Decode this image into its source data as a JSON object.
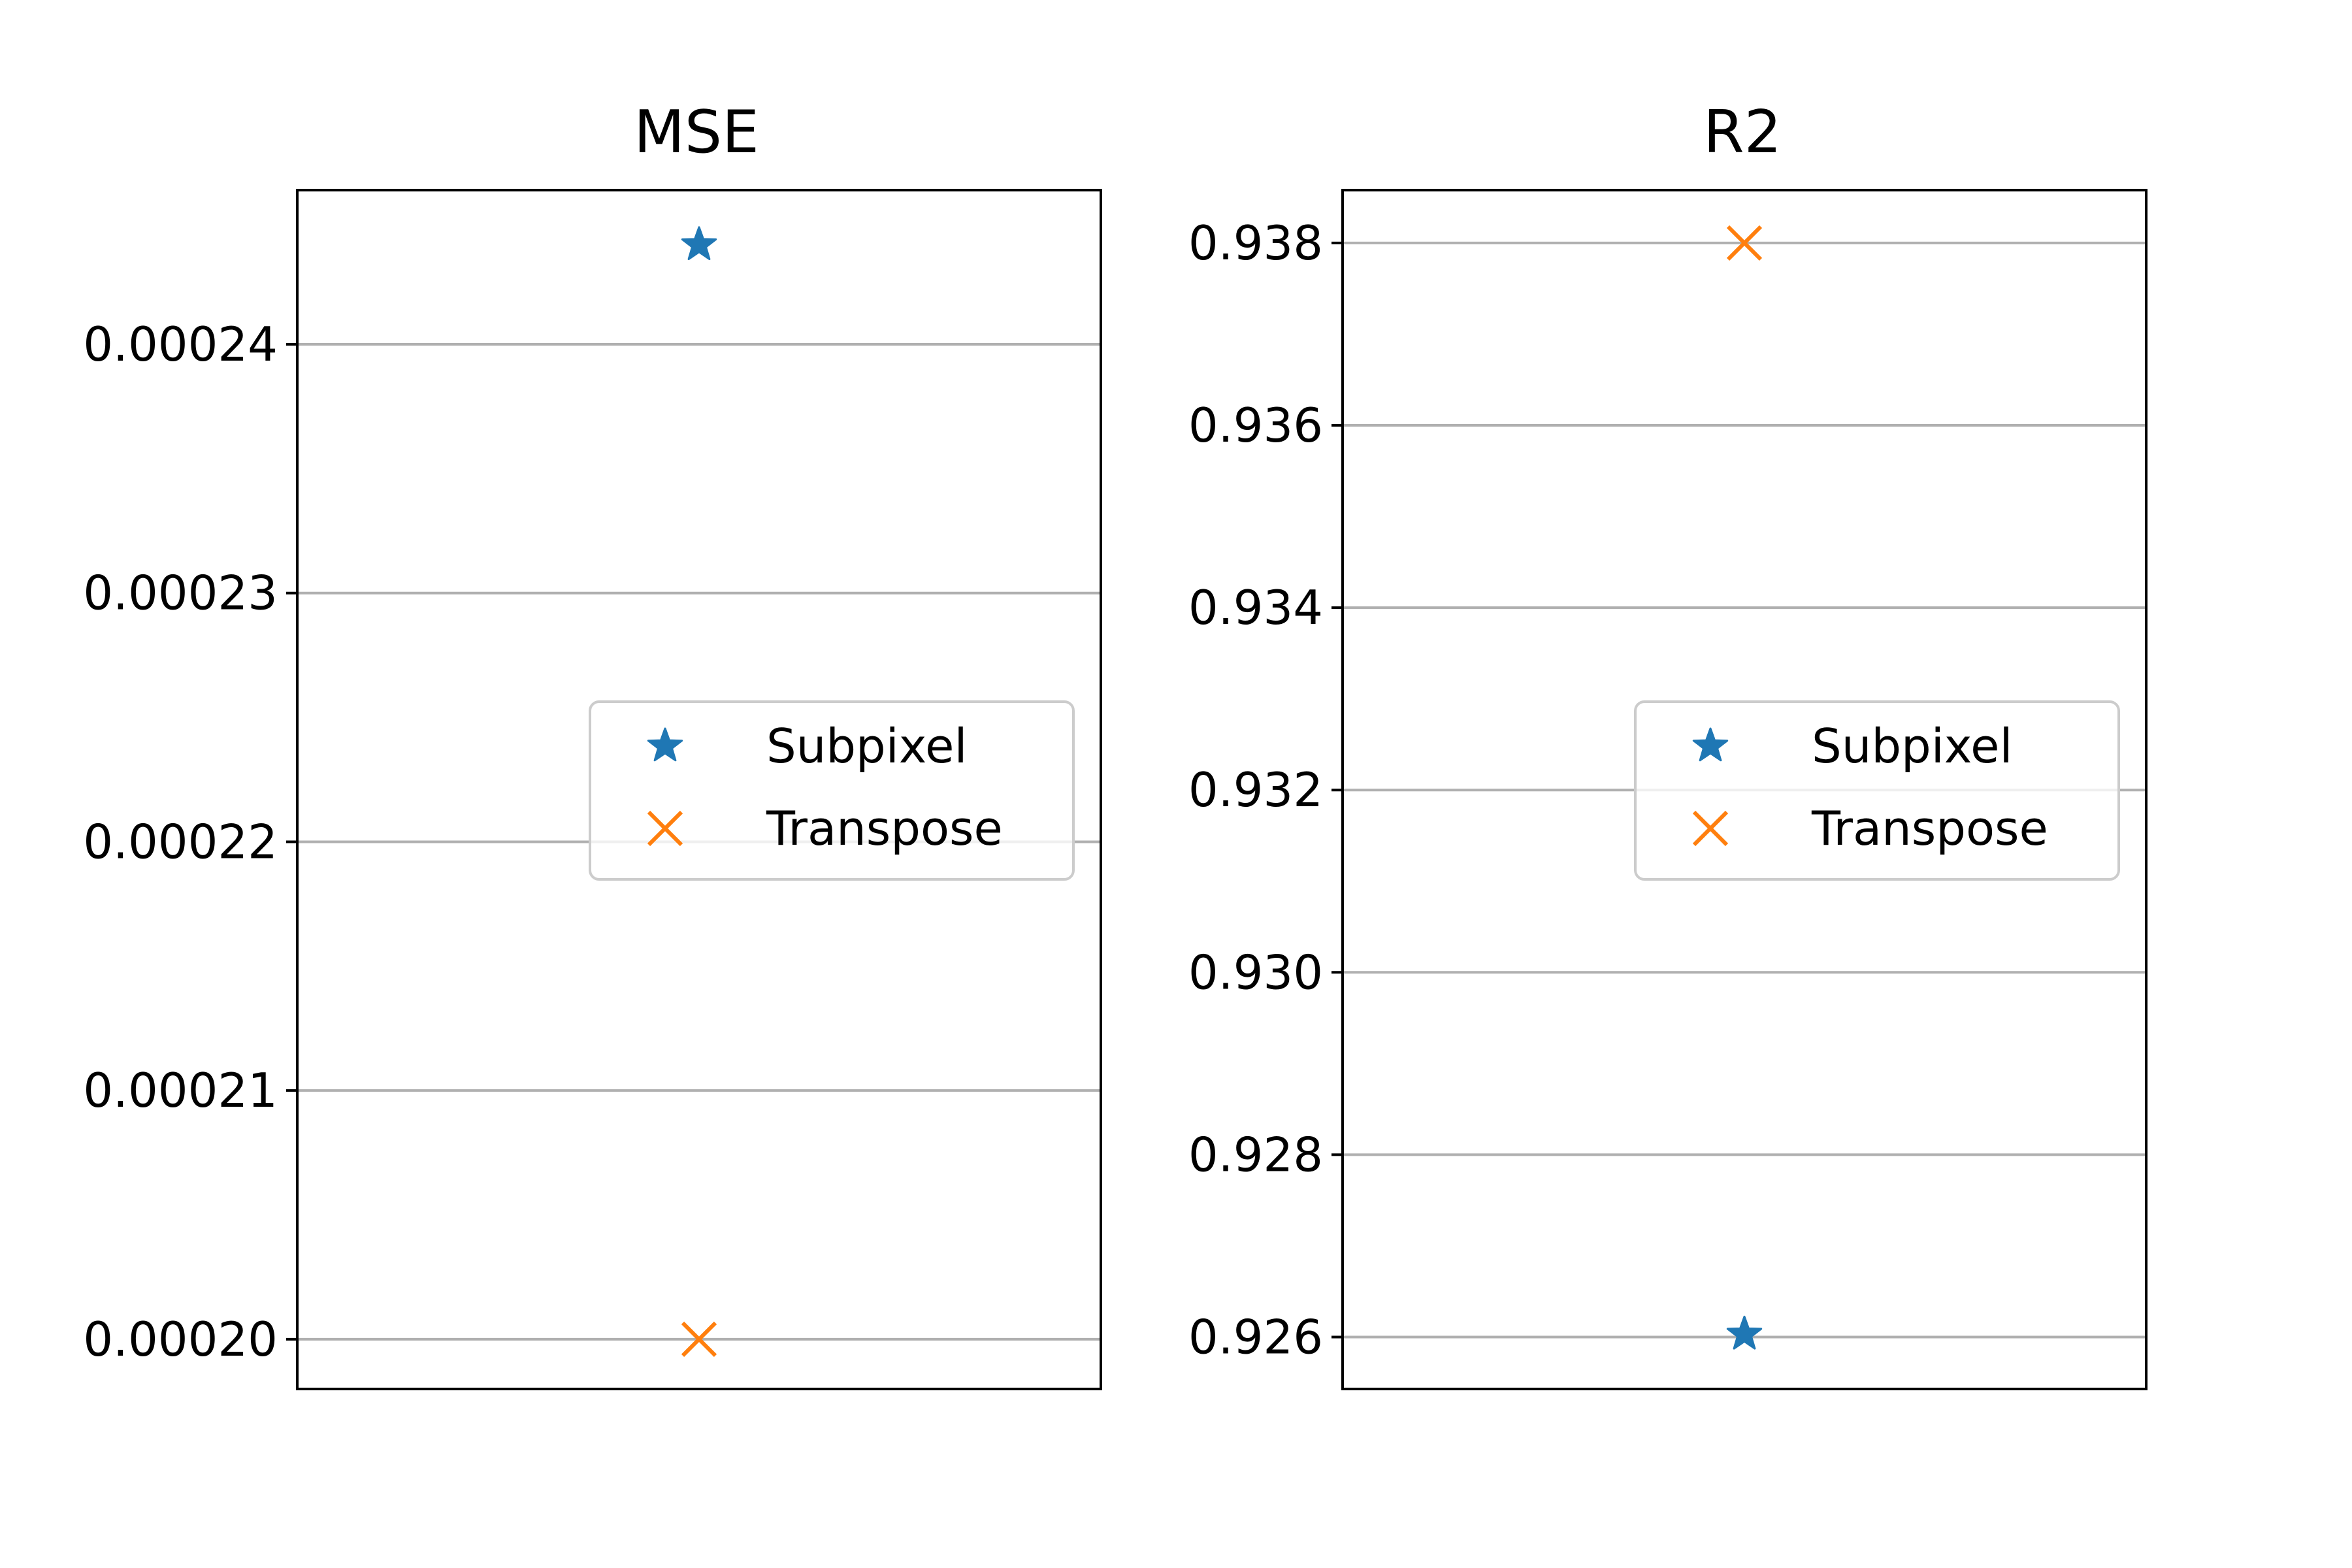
{
  "chart_data": [
    {
      "type": "scatter",
      "title": "MSE",
      "xlabel": "",
      "ylabel": "",
      "ylim": [
        0.000198,
        0.0002462
      ],
      "yticks": [
        0.0002,
        0.00021,
        0.00022,
        0.00023,
        0.00024
      ],
      "ytick_labels": [
        "0.00020",
        "0.00021",
        "0.00022",
        "0.00023",
        "0.00024"
      ],
      "grid": {
        "axis": "y",
        "on": true
      },
      "legend": {
        "placement": "center-right"
      },
      "series": [
        {
          "name": "Subpixel",
          "marker": "star",
          "color": "#1f77b4",
          "values": [
            0.000244
          ]
        },
        {
          "name": "Transpose",
          "marker": "x",
          "color": "#ff7f0e",
          "values": [
            0.0002
          ]
        }
      ]
    },
    {
      "type": "scatter",
      "title": "R2",
      "xlabel": "",
      "ylabel": "",
      "ylim": [
        0.92543,
        0.93858
      ],
      "yticks": [
        0.926,
        0.928,
        0.93,
        0.932,
        0.934,
        0.936,
        0.938
      ],
      "ytick_labels": [
        "0.926",
        "0.928",
        "0.930",
        "0.932",
        "0.934",
        "0.936",
        "0.938"
      ],
      "grid": {
        "axis": "y",
        "on": true
      },
      "legend": {
        "placement": "center-right"
      },
      "series": [
        {
          "name": "Subpixel",
          "marker": "star",
          "color": "#1f77b4",
          "values": [
            0.92603
          ]
        },
        {
          "name": "Transpose",
          "marker": "x",
          "color": "#ff7f0e",
          "values": [
            0.938
          ]
        }
      ]
    }
  ]
}
